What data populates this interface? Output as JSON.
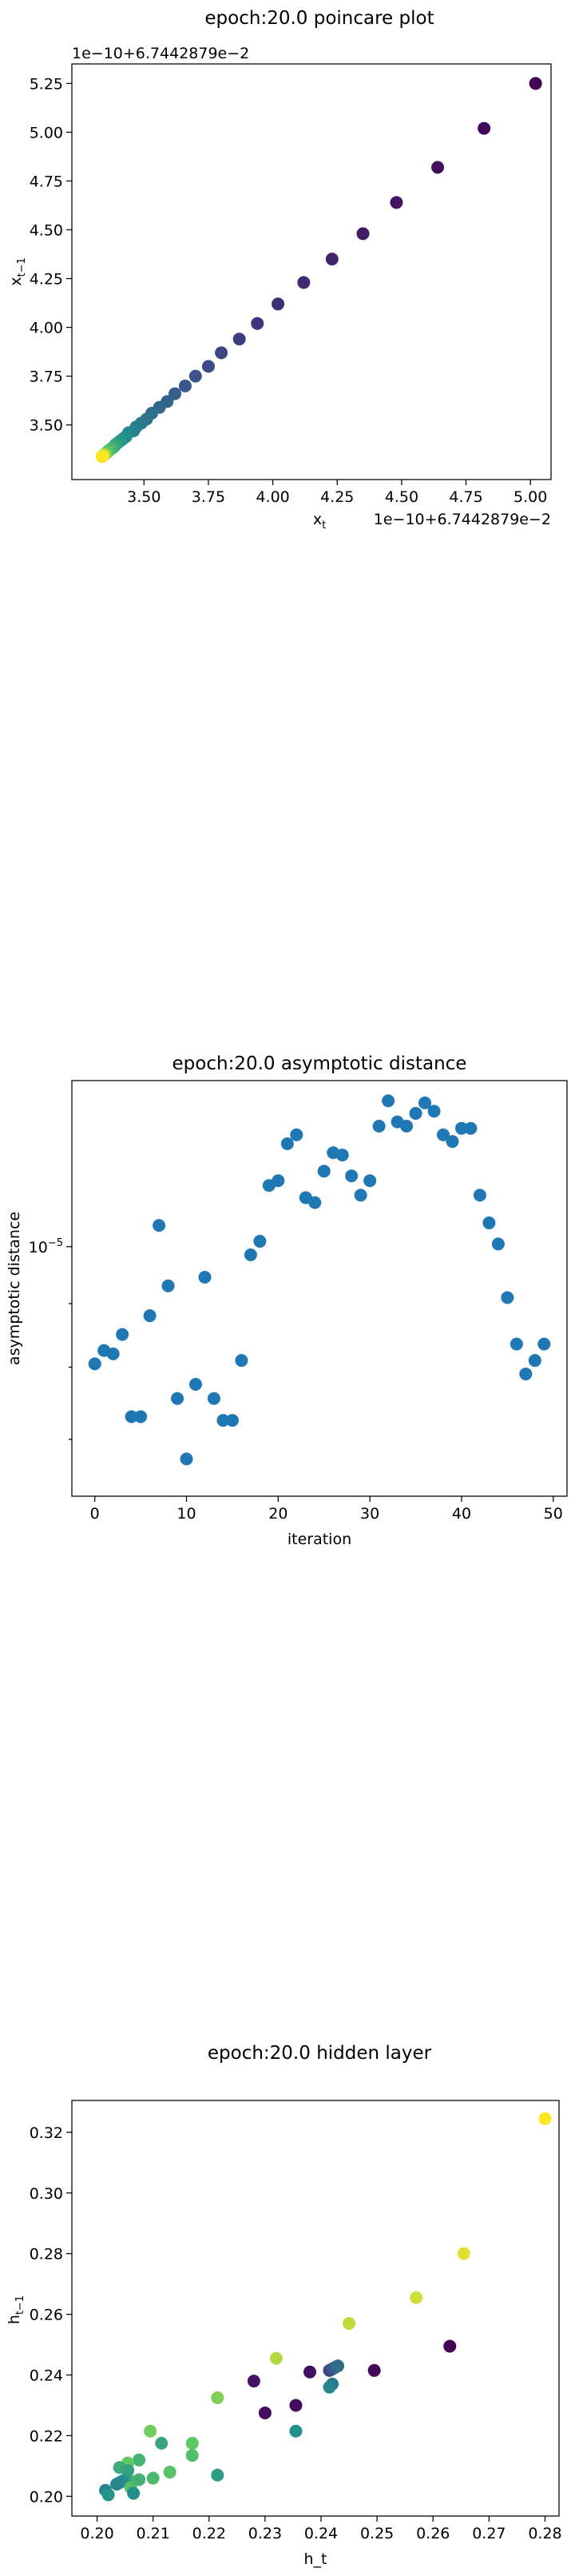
{
  "chart_data": [
    {
      "id": "poincare",
      "type": "scatter",
      "title": "epoch:20.0 poincare plot",
      "xlabel": "x",
      "xlabel_sub": "t",
      "ylabel": "x",
      "ylabel_sub": "t−1",
      "x_offset_label": "1e−10+6.7442879e−2",
      "y_offset_label": "1e−10+6.7442879e−2",
      "xlim": [
        3.22,
        5.08
      ],
      "ylim": [
        3.22,
        5.35
      ],
      "xticks": [
        3.5,
        3.75,
        4.0,
        4.25,
        4.5,
        4.75,
        5.0
      ],
      "xtick_labels": [
        "3.50",
        "3.75",
        "4.00",
        "4.25",
        "4.50",
        "4.75",
        "5.00"
      ],
      "yticks": [
        3.5,
        3.75,
        4.0,
        4.25,
        4.5,
        4.75,
        5.0,
        5.25
      ],
      "ytick_labels": [
        "3.50",
        "3.75",
        "4.00",
        "4.25",
        "4.50",
        "4.75",
        "5.00",
        "5.25"
      ],
      "colormap": [
        "#440154",
        "#3b528b",
        "#21918c",
        "#5ec962",
        "#fde725"
      ],
      "points": [
        {
          "x": 5.02,
          "y": 5.25
        },
        {
          "x": 4.82,
          "y": 5.02
        },
        {
          "x": 4.64,
          "y": 4.82
        },
        {
          "x": 4.48,
          "y": 4.64
        },
        {
          "x": 4.35,
          "y": 4.48
        },
        {
          "x": 4.23,
          "y": 4.35
        },
        {
          "x": 4.12,
          "y": 4.23
        },
        {
          "x": 4.02,
          "y": 4.12
        },
        {
          "x": 3.94,
          "y": 4.02
        },
        {
          "x": 3.87,
          "y": 3.94
        },
        {
          "x": 3.8,
          "y": 3.87
        },
        {
          "x": 3.75,
          "y": 3.8
        },
        {
          "x": 3.7,
          "y": 3.75
        },
        {
          "x": 3.66,
          "y": 3.7
        },
        {
          "x": 3.62,
          "y": 3.66
        },
        {
          "x": 3.59,
          "y": 3.62
        },
        {
          "x": 3.56,
          "y": 3.59
        },
        {
          "x": 3.53,
          "y": 3.56
        },
        {
          "x": 3.51,
          "y": 3.53
        },
        {
          "x": 3.49,
          "y": 3.51
        },
        {
          "x": 3.47,
          "y": 3.49
        },
        {
          "x": 3.46,
          "y": 3.47
        },
        {
          "x": 3.44,
          "y": 3.46
        },
        {
          "x": 3.43,
          "y": 3.44
        },
        {
          "x": 3.42,
          "y": 3.43
        },
        {
          "x": 3.41,
          "y": 3.42
        },
        {
          "x": 3.4,
          "y": 3.41
        },
        {
          "x": 3.39,
          "y": 3.4
        },
        {
          "x": 3.385,
          "y": 3.39
        },
        {
          "x": 3.38,
          "y": 3.385
        },
        {
          "x": 3.375,
          "y": 3.38
        },
        {
          "x": 3.37,
          "y": 3.375
        },
        {
          "x": 3.365,
          "y": 3.37
        },
        {
          "x": 3.36,
          "y": 3.365
        },
        {
          "x": 3.357,
          "y": 3.36
        },
        {
          "x": 3.354,
          "y": 3.357
        },
        {
          "x": 3.352,
          "y": 3.354
        },
        {
          "x": 3.35,
          "y": 3.352
        },
        {
          "x": 3.348,
          "y": 3.35
        },
        {
          "x": 3.346,
          "y": 3.348
        },
        {
          "x": 3.345,
          "y": 3.346
        },
        {
          "x": 3.344,
          "y": 3.345
        },
        {
          "x": 3.343,
          "y": 3.344
        },
        {
          "x": 3.342,
          "y": 3.343
        },
        {
          "x": 3.341,
          "y": 3.342
        },
        {
          "x": 3.34,
          "y": 3.341
        },
        {
          "x": 3.339,
          "y": 3.34
        },
        {
          "x": 3.338,
          "y": 3.339
        },
        {
          "x": 3.337,
          "y": 3.338
        }
      ]
    },
    {
      "id": "asymptotic",
      "type": "scatter",
      "title": "epoch:20.0 asymptotic distance",
      "xlabel": "iteration",
      "ylabel": "asymptotic distance",
      "yscale": "log",
      "xlim": [
        -2.5,
        51.5
      ],
      "xticks": [
        0,
        10,
        20,
        30,
        40,
        50
      ],
      "xtick_labels": [
        "0",
        "10",
        "20",
        "30",
        "40",
        "50"
      ],
      "ytick_major": [
        {
          "value": 1e-05,
          "base": "10",
          "exp": "−5"
        }
      ],
      "color": "#1f77b4",
      "points": [
        {
          "x": 0,
          "y": 8.05e-06
        },
        {
          "x": 1,
          "y": 8.25e-06
        },
        {
          "x": 2,
          "y": 8.2e-06
        },
        {
          "x": 3,
          "y": 8.5e-06
        },
        {
          "x": 4,
          "y": 7.3e-06
        },
        {
          "x": 5,
          "y": 7.3e-06
        },
        {
          "x": 6,
          "y": 8.8e-06
        },
        {
          "x": 7,
          "y": 1.04e-05
        },
        {
          "x": 8,
          "y": 9.3e-06
        },
        {
          "x": 9,
          "y": 7.55e-06
        },
        {
          "x": 10,
          "y": 6.75e-06
        },
        {
          "x": 11,
          "y": 7.75e-06
        },
        {
          "x": 12,
          "y": 9.45e-06
        },
        {
          "x": 13,
          "y": 7.55e-06
        },
        {
          "x": 14,
          "y": 7.25e-06
        },
        {
          "x": 15,
          "y": 7.25e-06
        },
        {
          "x": 16,
          "y": 8.1e-06
        },
        {
          "x": 17,
          "y": 9.85e-06
        },
        {
          "x": 18,
          "y": 1.01e-05
        },
        {
          "x": 19,
          "y": 1.12e-05
        },
        {
          "x": 20,
          "y": 1.13e-05
        },
        {
          "x": 21,
          "y": 1.21e-05
        },
        {
          "x": 22,
          "y": 1.23e-05
        },
        {
          "x": 23,
          "y": 1.095e-05
        },
        {
          "x": 24,
          "y": 1.085e-05
        },
        {
          "x": 25,
          "y": 1.15e-05
        },
        {
          "x": 26,
          "y": 1.19e-05
        },
        {
          "x": 27,
          "y": 1.185e-05
        },
        {
          "x": 28,
          "y": 1.14e-05
        },
        {
          "x": 29,
          "y": 1.1e-05
        },
        {
          "x": 30,
          "y": 1.13e-05
        },
        {
          "x": 31,
          "y": 1.25e-05
        },
        {
          "x": 32,
          "y": 1.31e-05
        },
        {
          "x": 33,
          "y": 1.26e-05
        },
        {
          "x": 34,
          "y": 1.25e-05
        },
        {
          "x": 35,
          "y": 1.28e-05
        },
        {
          "x": 36,
          "y": 1.305e-05
        },
        {
          "x": 37,
          "y": 1.285e-05
        },
        {
          "x": 38,
          "y": 1.23e-05
        },
        {
          "x": 39,
          "y": 1.215e-05
        },
        {
          "x": 40,
          "y": 1.245e-05
        },
        {
          "x": 41,
          "y": 1.245e-05
        },
        {
          "x": 42,
          "y": 1.1e-05
        },
        {
          "x": 43,
          "y": 1.045e-05
        },
        {
          "x": 44,
          "y": 1.005e-05
        },
        {
          "x": 45,
          "y": 9.1e-06
        },
        {
          "x": 46,
          "y": 8.35e-06
        },
        {
          "x": 47,
          "y": 7.9e-06
        },
        {
          "x": 48,
          "y": 8.1e-06
        },
        {
          "x": 49,
          "y": 8.35e-06
        }
      ]
    },
    {
      "id": "hidden",
      "type": "scatter",
      "title": "epoch:20.0 hidden layer",
      "xlabel": "h_t",
      "ylabel": "h",
      "ylabel_sub": "t−1",
      "xlim": [
        0.1955,
        0.2825
      ],
      "ylim": [
        0.1935,
        0.3305
      ],
      "xticks": [
        0.2,
        0.21,
        0.22,
        0.23,
        0.24,
        0.25,
        0.26,
        0.27,
        0.28
      ],
      "xtick_labels": [
        "0.20",
        "0.21",
        "0.22",
        "0.23",
        "0.24",
        "0.25",
        "0.26",
        "0.27",
        "0.28"
      ],
      "yticks": [
        0.2,
        0.22,
        0.24,
        0.26,
        0.28,
        0.3,
        0.32
      ],
      "ytick_labels": [
        "0.20",
        "0.22",
        "0.24",
        "0.26",
        "0.28",
        "0.30",
        "0.32"
      ],
      "colormap": [
        "#440154",
        "#3b528b",
        "#21918c",
        "#5ec962",
        "#fde725"
      ],
      "points": [
        {
          "x": 0.28,
          "y": 0.3245,
          "c": 1.0
        },
        {
          "x": 0.2655,
          "y": 0.28,
          "c": 0.95
        },
        {
          "x": 0.257,
          "y": 0.2655,
          "c": 0.93
        },
        {
          "x": 0.245,
          "y": 0.257,
          "c": 0.9
        },
        {
          "x": 0.232,
          "y": 0.2455,
          "c": 0.88
        },
        {
          "x": 0.2215,
          "y": 0.2325,
          "c": 0.8
        },
        {
          "x": 0.263,
          "y": 0.2495,
          "c": 0.0
        },
        {
          "x": 0.2495,
          "y": 0.2415,
          "c": 0.02
        },
        {
          "x": 0.238,
          "y": 0.241,
          "c": 0.05
        },
        {
          "x": 0.228,
          "y": 0.238,
          "c": 0.06
        },
        {
          "x": 0.23,
          "y": 0.2275,
          "c": 0.04
        },
        {
          "x": 0.2355,
          "y": 0.23,
          "c": 0.03
        },
        {
          "x": 0.2415,
          "y": 0.2415,
          "c": 0.2
        },
        {
          "x": 0.242,
          "y": 0.242,
          "c": 0.25
        },
        {
          "x": 0.2425,
          "y": 0.2425,
          "c": 0.3
        },
        {
          "x": 0.243,
          "y": 0.243,
          "c": 0.35
        },
        {
          "x": 0.242,
          "y": 0.237,
          "c": 0.4
        },
        {
          "x": 0.2415,
          "y": 0.236,
          "c": 0.45
        },
        {
          "x": 0.2355,
          "y": 0.2215,
          "c": 0.5
        },
        {
          "x": 0.2215,
          "y": 0.207,
          "c": 0.55
        },
        {
          "x": 0.217,
          "y": 0.2175,
          "c": 0.75
        },
        {
          "x": 0.217,
          "y": 0.2135,
          "c": 0.7
        },
        {
          "x": 0.2095,
          "y": 0.2215,
          "c": 0.78
        },
        {
          "x": 0.213,
          "y": 0.208,
          "c": 0.72
        },
        {
          "x": 0.21,
          "y": 0.206,
          "c": 0.68
        },
        {
          "x": 0.2115,
          "y": 0.2175,
          "c": 0.6
        },
        {
          "x": 0.2075,
          "y": 0.212,
          "c": 0.65
        },
        {
          "x": 0.2055,
          "y": 0.211,
          "c": 0.75
        },
        {
          "x": 0.204,
          "y": 0.2095,
          "c": 0.62
        },
        {
          "x": 0.206,
          "y": 0.205,
          "c": 0.66
        },
        {
          "x": 0.2055,
          "y": 0.2085,
          "c": 0.58
        },
        {
          "x": 0.205,
          "y": 0.2055,
          "c": 0.55
        },
        {
          "x": 0.2045,
          "y": 0.205,
          "c": 0.5
        },
        {
          "x": 0.204,
          "y": 0.2045,
          "c": 0.48
        },
        {
          "x": 0.2035,
          "y": 0.204,
          "c": 0.46
        },
        {
          "x": 0.206,
          "y": 0.203,
          "c": 0.7
        },
        {
          "x": 0.2065,
          "y": 0.201,
          "c": 0.5
        },
        {
          "x": 0.2075,
          "y": 0.2055,
          "c": 0.64
        },
        {
          "x": 0.2015,
          "y": 0.202,
          "c": 0.45
        },
        {
          "x": 0.202,
          "y": 0.2005,
          "c": 0.52
        }
      ]
    }
  ]
}
